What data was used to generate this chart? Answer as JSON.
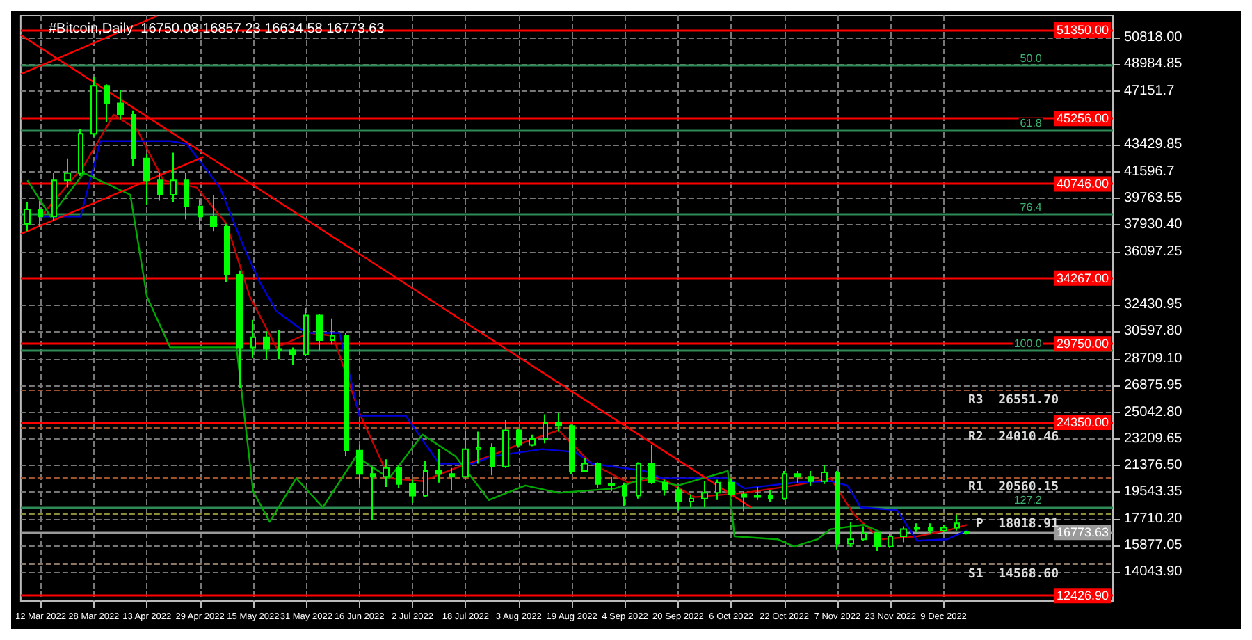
{
  "chart_data": {
    "type": "candlestick",
    "title": "#Bitcoin,Daily  16750.08 16857.23 16634.58 16773.63",
    "color": "#00ff00",
    "x": [
      "2022-03-08",
      "2022-03-12",
      "2022-03-16",
      "2022-03-20",
      "2022-03-24",
      "2022-03-28",
      "2022-04-01",
      "2022-04-05",
      "2022-04-09",
      "2022-04-13",
      "2022-04-17",
      "2022-04-21",
      "2022-04-25",
      "2022-04-29",
      "2022-05-03",
      "2022-05-07",
      "2022-05-11",
      "2022-05-15",
      "2022-05-19",
      "2022-05-23",
      "2022-05-27",
      "2022-05-31",
      "2022-06-04",
      "2022-06-08",
      "2022-06-12",
      "2022-06-16",
      "2022-06-20",
      "2022-06-24",
      "2022-06-28",
      "2022-07-02",
      "2022-07-06",
      "2022-07-10",
      "2022-07-14",
      "2022-07-18",
      "2022-07-22",
      "2022-07-26",
      "2022-07-30",
      "2022-08-03",
      "2022-08-07",
      "2022-08-11",
      "2022-08-15",
      "2022-08-19",
      "2022-08-23",
      "2022-08-27",
      "2022-08-31",
      "2022-09-04",
      "2022-09-08",
      "2022-09-12",
      "2022-09-16",
      "2022-09-20",
      "2022-09-24",
      "2022-09-28",
      "2022-10-02",
      "2022-10-06",
      "2022-10-10",
      "2022-10-14",
      "2022-10-18",
      "2022-10-22",
      "2022-10-26",
      "2022-10-30",
      "2022-11-03",
      "2022-11-07",
      "2022-11-11",
      "2022-11-15",
      "2022-11-19",
      "2022-11-23",
      "2022-11-27",
      "2022-12-01",
      "2022-12-05",
      "2022-12-09",
      "2022-12-13",
      "2022-12-16"
    ],
    "ohlc": [
      [
        38000,
        39500,
        37500,
        39000
      ],
      [
        39000,
        39600,
        37800,
        38500
      ],
      [
        38500,
        41500,
        38200,
        41000
      ],
      [
        41000,
        42500,
        40500,
        41500
      ],
      [
        41500,
        44500,
        41300,
        44200
      ],
      [
        44200,
        48100,
        44000,
        47500
      ],
      [
        47500,
        47600,
        45000,
        46300
      ],
      [
        46300,
        47200,
        45200,
        45500
      ],
      [
        45500,
        45800,
        42000,
        42500
      ],
      [
        42500,
        42800,
        39300,
        41000
      ],
      [
        41000,
        41500,
        39600,
        40000
      ],
      [
        40000,
        42900,
        39500,
        41000
      ],
      [
        41000,
        41500,
        38300,
        39200
      ],
      [
        39200,
        39700,
        37600,
        38500
      ],
      [
        38500,
        40000,
        37500,
        37800
      ],
      [
        37800,
        38000,
        34000,
        34500
      ],
      [
        34500,
        34800,
        26700,
        29500
      ],
      [
        29500,
        31400,
        28800,
        30200
      ],
      [
        30200,
        30600,
        28700,
        29400
      ],
      [
        29400,
        30700,
        28700,
        29300
      ],
      [
        29300,
        29500,
        28300,
        29000
      ],
      [
        29000,
        32200,
        28900,
        31700
      ],
      [
        31700,
        31800,
        29300,
        30000
      ],
      [
        30000,
        31500,
        29700,
        30300
      ],
      [
        30300,
        30500,
        22000,
        22400
      ],
      [
        22400,
        22800,
        20100,
        20800
      ],
      [
        20800,
        21300,
        17600,
        20600
      ],
      [
        20600,
        21800,
        19900,
        21200
      ],
      [
        21200,
        21400,
        19800,
        20100
      ],
      [
        20100,
        20400,
        18800,
        19300
      ],
      [
        19300,
        21700,
        19200,
        21000
      ],
      [
        21000,
        22500,
        20200,
        20800
      ],
      [
        20800,
        21200,
        19700,
        20600
      ],
      [
        20600,
        23800,
        20500,
        22500
      ],
      [
        22500,
        23700,
        21500,
        22600
      ],
      [
        22600,
        22900,
        20700,
        21300
      ],
      [
        21300,
        24500,
        21200,
        23800
      ],
      [
        23800,
        23900,
        22600,
        22800
      ],
      [
        22800,
        23500,
        22700,
        23200
      ],
      [
        23200,
        24900,
        22900,
        24300
      ],
      [
        24300,
        25000,
        23700,
        24100
      ],
      [
        24100,
        24200,
        20800,
        21000
      ],
      [
        21000,
        21900,
        20900,
        21500
      ],
      [
        21500,
        21600,
        19800,
        20100
      ],
      [
        20100,
        20600,
        19600,
        20000
      ],
      [
        20000,
        20200,
        18600,
        19300
      ],
      [
        19300,
        21600,
        19100,
        21500
      ],
      [
        21500,
        22800,
        20100,
        20200
      ],
      [
        20200,
        20400,
        19300,
        19700
      ],
      [
        19700,
        19900,
        18300,
        18900
      ],
      [
        18900,
        19400,
        18500,
        19100
      ],
      [
        19100,
        20300,
        18500,
        19500
      ],
      [
        19500,
        20400,
        19000,
        20200
      ],
      [
        20200,
        20500,
        19300,
        19400
      ],
      [
        19400,
        19600,
        18200,
        19200
      ],
      [
        19200,
        19900,
        19000,
        19300
      ],
      [
        19300,
        19700,
        18900,
        19100
      ],
      [
        19100,
        21000,
        19000,
        20800
      ],
      [
        20800,
        21000,
        20200,
        20600
      ],
      [
        20600,
        21000,
        20000,
        20300
      ],
      [
        20300,
        21400,
        20100,
        20900
      ],
      [
        20900,
        21000,
        15600,
        16000
      ],
      [
        16000,
        17500,
        15800,
        16300
      ],
      [
        16300,
        17200,
        16200,
        16700
      ],
      [
        16700,
        16800,
        15500,
        15800
      ],
      [
        15800,
        16800,
        15700,
        16500
      ],
      [
        16500,
        17200,
        16100,
        17000
      ],
      [
        17000,
        17400,
        16800,
        17100
      ],
      [
        17100,
        17400,
        16700,
        16900
      ],
      [
        16900,
        17300,
        16800,
        17100
      ],
      [
        17100,
        18000,
        16900,
        17400
      ],
      [
        16750.08,
        16857.23,
        16634.58,
        16773.63
      ]
    ],
    "series": [
      {
        "type": "line",
        "color": "#cc0000",
        "x": [
          "2022-03-12",
          "2022-03-25",
          "2022-04-03",
          "2022-04-10",
          "2022-04-18",
          "2022-04-28",
          "2022-05-07",
          "2022-05-14",
          "2022-05-22",
          "2022-06-01",
          "2022-06-08",
          "2022-06-16",
          "2022-06-25",
          "2022-07-05",
          "2022-07-15",
          "2022-07-25",
          "2022-08-05",
          "2022-08-15",
          "2022-08-25",
          "2022-09-05",
          "2022-09-15",
          "2022-09-25",
          "2022-10-10",
          "2022-10-25",
          "2022-11-05",
          "2022-11-12",
          "2022-11-20",
          "2022-12-01",
          "2022-12-10",
          "2022-12-16"
        ],
        "values": [
          38500,
          42000,
          45500,
          44500,
          41000,
          40500,
          38000,
          33000,
          29500,
          30500,
          30300,
          25000,
          20500,
          20300,
          21200,
          22000,
          23000,
          23800,
          21500,
          20200,
          20500,
          19200,
          19500,
          20000,
          20500,
          18000,
          16300,
          16500,
          16900,
          17300
        ]
      },
      {
        "type": "line",
        "color": "#0000dd",
        "x": [
          "2022-03-12",
          "2022-03-24",
          "2022-03-30",
          "2022-04-20",
          "2022-04-25",
          "2022-05-05",
          "2022-05-12",
          "2022-05-17",
          "2022-05-22",
          "2022-05-31",
          "2022-06-10",
          "2022-06-16",
          "2022-06-30",
          "2022-07-10",
          "2022-07-20",
          "2022-07-26",
          "2022-08-10",
          "2022-08-20",
          "2022-08-25",
          "2022-09-10",
          "2022-09-15",
          "2022-10-05",
          "2022-10-10",
          "2022-10-25",
          "2022-11-05",
          "2022-11-10",
          "2022-11-14",
          "2022-11-25",
          "2022-12-01",
          "2022-12-10",
          "2022-12-16"
        ],
        "values": [
          38500,
          38500,
          43700,
          43700,
          43500,
          40500,
          36500,
          34000,
          32000,
          30500,
          30500,
          24800,
          24800,
          21500,
          21500,
          22000,
          22500,
          22300,
          21500,
          21000,
          20500,
          20500,
          19800,
          20200,
          20300,
          20000,
          18500,
          18300,
          16200,
          16300,
          16900
        ]
      },
      {
        "type": "line",
        "color": "#00aa00",
        "x": [
          "2022-03-08",
          "2022-03-15",
          "2022-03-25",
          "2022-04-08",
          "2022-04-13",
          "2022-04-20",
          "2022-05-10",
          "2022-05-15",
          "2022-05-20",
          "2022-05-28",
          "2022-06-05",
          "2022-06-15",
          "2022-06-25",
          "2022-07-05",
          "2022-07-15",
          "2022-07-25",
          "2022-08-05",
          "2022-08-15",
          "2022-09-01",
          "2022-09-10",
          "2022-09-20",
          "2022-10-05",
          "2022-10-07",
          "2022-10-20",
          "2022-10-25",
          "2022-11-01",
          "2022-11-05",
          "2022-11-15",
          "2022-11-20"
        ],
        "values": [
          41000,
          38500,
          41500,
          40000,
          33000,
          29500,
          29500,
          19600,
          17500,
          20500,
          18500,
          22000,
          20500,
          23500,
          22000,
          19000,
          20000,
          19500,
          19800,
          20500,
          20000,
          21000,
          16500,
          16300,
          15800,
          16300,
          17000,
          17300,
          16800
        ]
      },
      {
        "type": "line",
        "color": "#ff0000",
        "x": [
          "2022-03-06",
          "2022-04-16"
        ],
        "values": [
          48300,
          52300
        ]
      },
      {
        "type": "line",
        "color": "#ff0000",
        "x": [
          "2022-03-06",
          "2022-04-30"
        ],
        "values": [
          37300,
          42600
        ]
      },
      {
        "type": "line",
        "color": "#ff0000",
        "x": [
          "2022-03-06",
          "2022-10-12"
        ],
        "values": [
          51000,
          18500
        ]
      }
    ],
    "xlim": [
      "2022-03-06",
      "2023-01-29"
    ],
    "xticks": [
      {
        "value": "2022-03-12",
        "label": "12 Mar 2022"
      },
      {
        "value": "2022-03-28",
        "label": "28 Mar 2022"
      },
      {
        "value": "2022-04-13",
        "label": "13 Apr 2022"
      },
      {
        "value": "2022-04-29",
        "label": "29 Apr 2022"
      },
      {
        "value": "2022-05-15",
        "label": "15 May 2022"
      },
      {
        "value": "2022-05-31",
        "label": "31 May 2022"
      },
      {
        "value": "2022-06-16",
        "label": "16 Jun 2022"
      },
      {
        "value": "2022-07-02",
        "label": "2 Jul 2022"
      },
      {
        "value": "2022-07-18",
        "label": "18 Jul 2022"
      },
      {
        "value": "2022-08-03",
        "label": "3 Aug 2022"
      },
      {
        "value": "2022-08-19",
        "label": "19 Aug 2022"
      },
      {
        "value": "2022-09-04",
        "label": "4 Sep 2022"
      },
      {
        "value": "2022-09-20",
        "label": "20 Sep 2022"
      },
      {
        "value": "2022-10-06",
        "label": "6 Oct 2022"
      },
      {
        "value": "2022-10-22",
        "label": "22 Oct 2022"
      },
      {
        "value": "2022-11-07",
        "label": "7 Nov 2022"
      },
      {
        "value": "2022-11-23",
        "label": "23 Nov 2022"
      },
      {
        "value": "2022-12-09",
        "label": "9 Dec 2022"
      }
    ],
    "ylim": [
      12050,
      52350
    ],
    "yticks": [
      {
        "value": 50818,
        "label": "50818.00"
      },
      48984.85,
      47151.7,
      43429.85,
      41596.7,
      39763.55,
      {
        "value": 37930.4,
        "label": "37930.40"
      },
      36097.25,
      32430.95,
      {
        "value": 30597.8,
        "label": "30597.80"
      },
      {
        "value": 28709.1,
        "label": "28709.10"
      },
      26875.95,
      {
        "value": 25042.8,
        "label": "25042.80"
      },
      23209.65,
      {
        "value": 21376.5,
        "label": "21376.50"
      },
      19543.35,
      {
        "value": 17710.2,
        "label": "17710.20"
      },
      15877.05,
      {
        "value": 14043.9,
        "label": "14043.90"
      }
    ],
    "ref_lines": [
      {
        "axis": "y",
        "value": 51350,
        "label": "51350.00",
        "color": "#ff0000"
      },
      {
        "axis": "y",
        "value": 45256,
        "label": "45256.00",
        "color": "#ff0000"
      },
      {
        "axis": "y",
        "value": 40746,
        "label": "40746.00",
        "color": "#ff0000"
      },
      {
        "axis": "y",
        "value": 34267,
        "label": "34267.00",
        "color": "#ff0000"
      },
      {
        "axis": "y",
        "value": 29750,
        "label": "29750.00",
        "color": "#ff0000"
      },
      {
        "axis": "y",
        "value": 24350,
        "label": "24350.00",
        "color": "#ff0000"
      },
      {
        "axis": "y",
        "value": 12426.9,
        "label": "12426.90",
        "color": "#ff0000"
      },
      {
        "axis": "y",
        "value": 16773.63,
        "label": "16773.63",
        "color": "#9a9a9a"
      },
      {
        "axis": "y",
        "value": 48900,
        "color": "#2e8b57"
      },
      {
        "axis": "y",
        "value": 44460,
        "color": "#2e8b57"
      },
      {
        "axis": "y",
        "value": 38650,
        "color": "#2e8b57"
      },
      {
        "axis": "y",
        "value": 29300,
        "color": "#2e8b57"
      },
      {
        "axis": "y",
        "value": 18500,
        "color": "#2e8b57"
      },
      {
        "axis": "y",
        "value": 26551.7,
        "label": "R3  26551.70",
        "color": "#a0522d",
        "line_style": "dashed"
      },
      {
        "axis": "y",
        "value": 24010.46,
        "label": "R2  24010.46",
        "color": "#a0522d",
        "line_style": "dashed"
      },
      {
        "axis": "y",
        "value": 20560.15,
        "label": "R1  20560.15",
        "color": "#a0522d",
        "line_style": "dashed"
      },
      {
        "axis": "y",
        "value": 18018.91,
        "label": "P  18018.91",
        "color": "#8b8b3a",
        "line_style": "dashed"
      },
      {
        "axis": "y",
        "value": 14568.6,
        "label": "S1  14568.60",
        "color": "#8b7765",
        "line_style": "dashed"
      }
    ],
    "annotations": [
      {
        "text": "50.0",
        "x": "2023-01-08",
        "y": 48900
      },
      {
        "text": "61.8",
        "x": "2023-01-08",
        "y": 44460
      },
      {
        "text": "76.4",
        "x": "2023-01-08",
        "y": 38650
      },
      {
        "text": "100.0",
        "x": "2023-01-08",
        "y": 29300
      },
      {
        "text": "127.2",
        "x": "2023-01-08",
        "y": 18500
      }
    ],
    "grid": true
  }
}
